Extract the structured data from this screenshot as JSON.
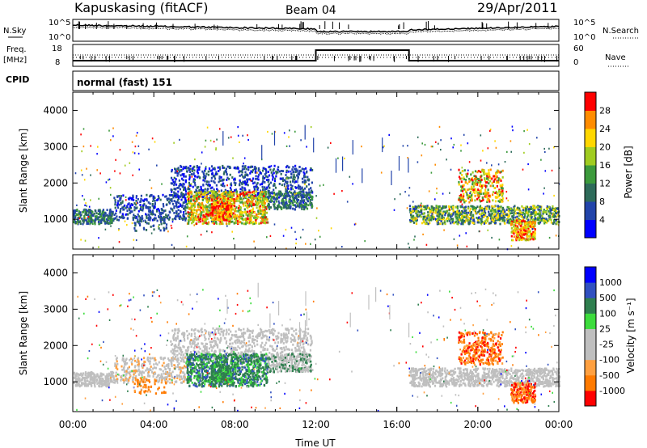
{
  "header": {
    "station": "Kapuskasing (fitACF)",
    "beam": "Beam 04",
    "date": "29/Apr/2011",
    "cpid_label": "CPID",
    "cpid_value": "normal (fast) 151"
  },
  "colors": {
    "power": [
      "#0000ff",
      "#2244aa",
      "#2e6b5a",
      "#3c9a3c",
      "#a0cc20",
      "#ffd700",
      "#ff8c00",
      "#ff0000"
    ],
    "velocity": [
      "#ff0000",
      "#ff7a00",
      "#ffa040",
      "#bfbfbf",
      "#bfbfbf",
      "#3ddc3d",
      "#2f7f4f",
      "#3050c0",
      "#0000ff"
    ],
    "gray": "#c0c0c0"
  },
  "chart_data": [
    {
      "type": "line",
      "name": "noise-panel",
      "left_label": "N.Sky",
      "right_label": "N.Search",
      "left_ticks": [
        "10^5",
        "10^0"
      ],
      "right_ticks": [
        "10^5",
        "10^0"
      ]
    },
    {
      "type": "line",
      "name": "frequency-nave-panel",
      "left_label": "Freq.",
      "left_units": "[MHz]",
      "right_label": "Nave",
      "left_ticks": [
        "18",
        "8"
      ],
      "right_ticks": [
        "60",
        "0"
      ],
      "freq_hold_low_until": 12.0,
      "freq_high_from": 12.0,
      "freq_high_until": 16.6
    },
    {
      "type": "heatmap",
      "name": "power",
      "ylabel": "Slant Range [km]",
      "ylim": [
        180,
        4500
      ],
      "yticks": [
        1000,
        2000,
        3000,
        4000
      ],
      "colorbar_label": "Power [dB]",
      "colorbar_ticks": [
        "4",
        "8",
        "12",
        "16",
        "20",
        "24",
        "28"
      ],
      "xlim": [
        0,
        24
      ]
    },
    {
      "type": "heatmap",
      "name": "velocity",
      "ylabel": "Slant Range [km]",
      "ylim": [
        180,
        4500
      ],
      "yticks": [
        1000,
        2000,
        3000,
        4000
      ],
      "colorbar_label": "Velocity [m s⁻¹]",
      "colorbar_ticks": [
        "1000",
        "500",
        "100",
        "25",
        "-25",
        "-100",
        "-500",
        "-1000"
      ],
      "xlabel": "Time UT",
      "xticks": [
        "00:00",
        "04:00",
        "08:00",
        "12:00",
        "16:00",
        "20:00",
        "00:00"
      ],
      "xlim": [
        0,
        24
      ]
    }
  ]
}
